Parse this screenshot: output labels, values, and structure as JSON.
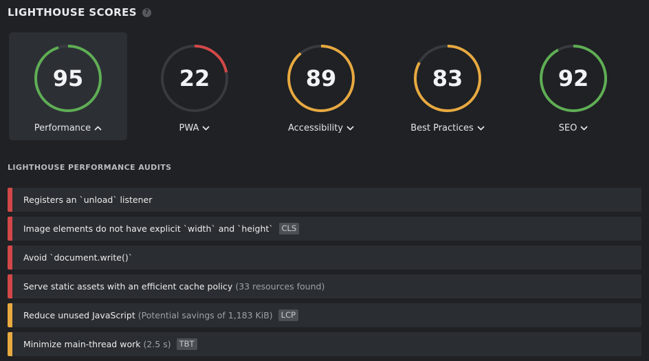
{
  "header": {
    "title": "LIGHTHOUSE SCORES",
    "help_glyph": "?"
  },
  "colors": {
    "good": "#5fae54",
    "average": "#e8a940",
    "poor": "#d24848",
    "track": "#373a3f"
  },
  "scores": [
    {
      "label": "Performance",
      "value": 95,
      "status": "good",
      "expanded": true
    },
    {
      "label": "PWA",
      "value": 22,
      "status": "poor",
      "expanded": false
    },
    {
      "label": "Accessibility",
      "value": 89,
      "status": "average",
      "expanded": false
    },
    {
      "label": "Best Practices",
      "value": 83,
      "status": "average",
      "expanded": false
    },
    {
      "label": "SEO",
      "value": 92,
      "status": "good",
      "expanded": false
    }
  ],
  "audits_section": {
    "title": "LIGHTHOUSE PERFORMANCE AUDITS"
  },
  "audits": [
    {
      "text": "Registers an `unload` listener",
      "detail": "",
      "badge": "",
      "status": "poor"
    },
    {
      "text": "Image elements do not have explicit `width` and `height`",
      "detail": "",
      "badge": "CLS",
      "status": "poor"
    },
    {
      "text": "Avoid `document.write()`",
      "detail": "",
      "badge": "",
      "status": "poor"
    },
    {
      "text": "Serve static assets with an efficient cache policy",
      "detail": "(33 resources found)",
      "badge": "",
      "status": "poor"
    },
    {
      "text": "Reduce unused JavaScript",
      "detail": "(Potential savings of 1,183 KiB)",
      "badge": "LCP",
      "status": "average"
    },
    {
      "text": "Minimize main-thread work",
      "detail": "(2.5 s)",
      "badge": "TBT",
      "status": "average"
    }
  ]
}
